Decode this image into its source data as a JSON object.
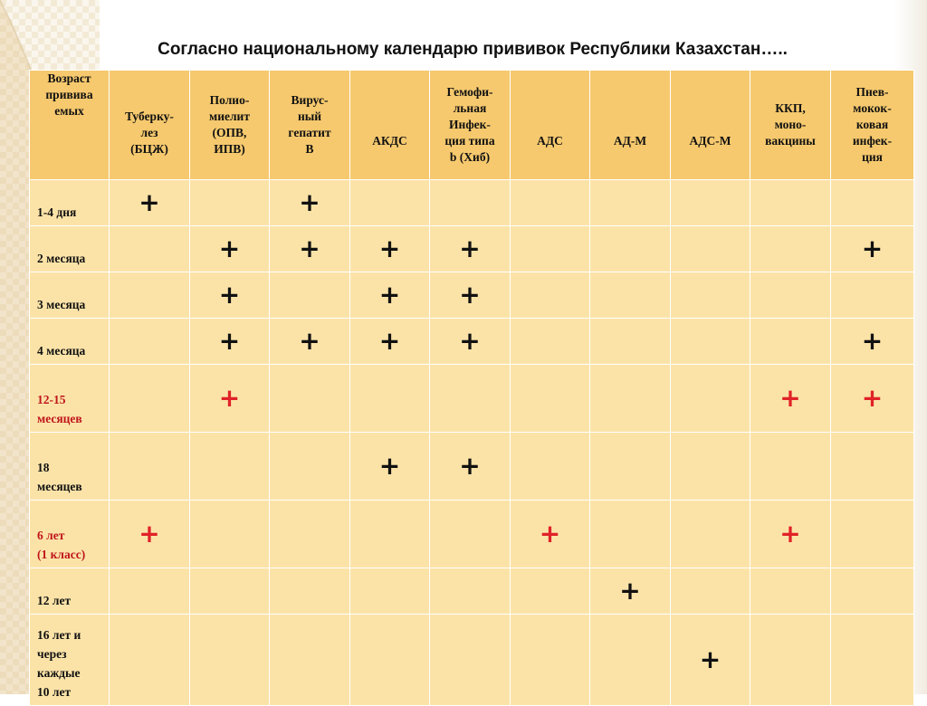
{
  "title": "Согласно национальному календарю прививок Республики Казахстан…..",
  "header": [
    [
      "Возраст",
      "привива",
      "емых"
    ],
    [
      "",
      "Туберку-",
      "лез",
      "(БЦЖ)"
    ],
    [
      "Полио-",
      "миелит",
      "(ОПВ,",
      "ИПВ)"
    ],
    [
      "Вирус-",
      "ный",
      "гепатит",
      "В"
    ],
    [
      "",
      "",
      "АКДС"
    ],
    [
      "Гемофи-",
      "льная",
      "Инфек-",
      "ция типа",
      "b (Хиб)"
    ],
    [
      "",
      "",
      "АДС"
    ],
    [
      "",
      "",
      "АД-М"
    ],
    [
      "",
      "",
      "АДС-М"
    ],
    [
      "ККП,",
      "моно-",
      "вакцины"
    ],
    [
      "Пнев-",
      "мокок-",
      "ковая",
      "инфек-",
      "ция"
    ]
  ],
  "rows": [
    {
      "age": [
        "1-4 дня"
      ],
      "age_red": false,
      "cells": [
        "+",
        "",
        "+",
        "",
        "",
        "",
        "",
        "",
        "",
        ""
      ],
      "plus_red": false,
      "align": "top"
    },
    {
      "age": [
        "2 месяца"
      ],
      "age_red": false,
      "cells": [
        "",
        "+",
        "+",
        "+",
        "+",
        "",
        "",
        "",
        "",
        "+"
      ],
      "plus_red": false,
      "align": "mid"
    },
    {
      "age": [
        "3 месяца"
      ],
      "age_red": false,
      "cells": [
        "",
        "+",
        "",
        "+",
        "+",
        "",
        "",
        "",
        "",
        ""
      ],
      "plus_red": false,
      "align": "mid"
    },
    {
      "age": [
        "4 месяца"
      ],
      "age_red": false,
      "cells": [
        "",
        "+",
        "+",
        "+",
        "+",
        "",
        "",
        "",
        "",
        "+"
      ],
      "plus_red": false,
      "align": "mid"
    },
    {
      "age": [
        "12-15",
        "месяцев"
      ],
      "age_red": true,
      "cells": [
        "",
        "+",
        "",
        "",
        "",
        "",
        "",
        "",
        "+",
        "+"
      ],
      "plus_red": true,
      "align": "mid"
    },
    {
      "age": [
        "18",
        "месяцев"
      ],
      "age_red": false,
      "cells": [
        "",
        "",
        "",
        "+",
        "+",
        "",
        "",
        "",
        "",
        ""
      ],
      "plus_red": false,
      "align": "mid"
    },
    {
      "age": [
        "6 лет",
        "(1 класс)"
      ],
      "age_red": true,
      "cells": [
        "+",
        "",
        "",
        "",
        "",
        "+",
        "",
        "",
        "+",
        ""
      ],
      "plus_red": true,
      "align": "mid"
    },
    {
      "age": [
        "12 лет"
      ],
      "age_red": false,
      "cells": [
        "",
        "",
        "",
        "",
        "",
        "",
        "+",
        "",
        "",
        ""
      ],
      "plus_red": false,
      "align": "mid"
    },
    {
      "age": [
        "16 лет и",
        "через",
        "каждые",
        "10 лет"
      ],
      "age_red": false,
      "cells": [
        "",
        "",
        "",
        "",
        "",
        "",
        "",
        "+",
        "",
        ""
      ],
      "plus_red": false,
      "align": "mid"
    }
  ],
  "colors": {
    "header_bg": "#f6c96e",
    "cell_bg": "#fbe3a8",
    "red_text": "#c0151b",
    "red_plus": "#e02228"
  }
}
